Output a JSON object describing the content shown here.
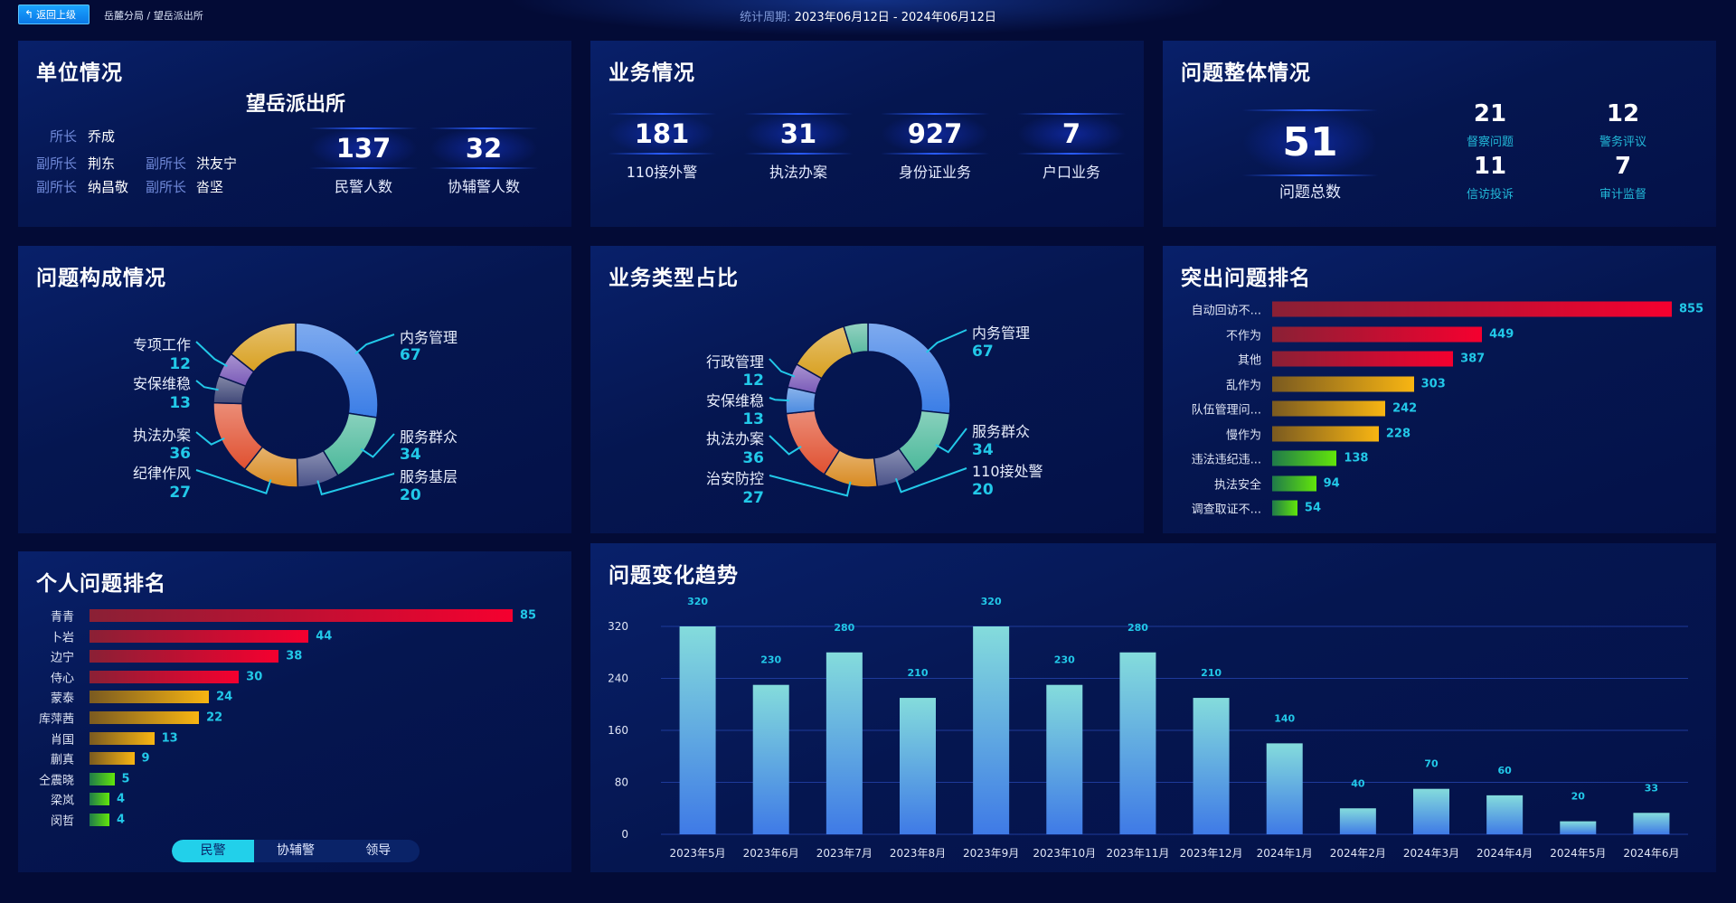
{
  "header": {
    "back_label": "返回上级",
    "back_icon": "return-arrow-icon",
    "breadcrumb": "岳麓分局 / 望岳派出所",
    "period_label": "统计周期:",
    "period_value": "2023年06月12日 - 2024年06月12日"
  },
  "unit": {
    "title": "单位情况",
    "name": "望岳派出所",
    "staff": [
      {
        "role": "所长",
        "name": "乔成"
      },
      {
        "role": "副所长",
        "name": "荆东"
      },
      {
        "role": "副所长",
        "name": "洪友宁"
      },
      {
        "role": "副所长",
        "name": "纳昌敬"
      },
      {
        "role": "副所长",
        "name": "沓坚"
      }
    ],
    "stats": [
      {
        "value": "137",
        "label": "民警人数"
      },
      {
        "value": "32",
        "label": "协辅警人数"
      }
    ]
  },
  "business": {
    "title": "业务情况",
    "stats": [
      {
        "value": "181",
        "label": "110接外警"
      },
      {
        "value": "31",
        "label": "执法办案"
      },
      {
        "value": "927",
        "label": "身份证业务"
      },
      {
        "value": "7",
        "label": "户口业务"
      }
    ]
  },
  "overall": {
    "title": "问题整体情况",
    "total": {
      "value": "51",
      "label": "问题总数"
    },
    "items": [
      {
        "value": "21",
        "label": "督察问题"
      },
      {
        "value": "12",
        "label": "警务评议"
      },
      {
        "value": "11",
        "label": "信访投诉"
      },
      {
        "value": "7",
        "label": "审计监督"
      }
    ]
  },
  "chart_data": [
    {
      "type": "pie",
      "title": "问题构成情况",
      "donut": true,
      "slices": [
        {
          "name": "内务管理",
          "value": 67,
          "color": "#3a7de6"
        },
        {
          "name": "服务群众",
          "value": 34,
          "color": "#4ab89a"
        },
        {
          "name": "服务基层",
          "value": 20,
          "color": "#4a5288"
        },
        {
          "name": "纪律作风",
          "value": 27,
          "color": "#d88a20"
        },
        {
          "name": "执法办案",
          "value": 36,
          "color": "#e05030"
        },
        {
          "name": "安保维稳",
          "value": 13,
          "color": "#404878"
        },
        {
          "name": "专项工作",
          "value": 12,
          "color": "#7a5ab8"
        },
        {
          "name": "",
          "value": 35,
          "color": "#d8a020"
        }
      ]
    },
    {
      "type": "pie",
      "title": "业务类型占比",
      "donut": true,
      "slices": [
        {
          "name": "内务管理",
          "value": 67,
          "color": "#3a7de6"
        },
        {
          "name": "服务群众",
          "value": 34,
          "color": "#4ab89a"
        },
        {
          "name": "110接处警",
          "value": 20,
          "color": "#4a5288"
        },
        {
          "name": "治安防控",
          "value": 27,
          "color": "#d88a20"
        },
        {
          "name": "执法办案",
          "value": 36,
          "color": "#e05030"
        },
        {
          "name": "安保维稳",
          "value": 13,
          "color": "#4a8ae0"
        },
        {
          "name": "行政管理",
          "value": 12,
          "color": "#7a5ab8"
        },
        {
          "name": "",
          "value": 30,
          "color": "#d8a020"
        },
        {
          "name": "",
          "value": 12,
          "color": "#5abaa0"
        }
      ]
    },
    {
      "type": "bar",
      "orientation": "horizontal",
      "title": "突出问题排名",
      "categories": [
        "自动回访不...",
        "不作为",
        "其他",
        "乱作为",
        "队伍管理问...",
        "慢作为",
        "违法违纪违...",
        "执法安全",
        "调查取证不..."
      ],
      "values": [
        855,
        449,
        387,
        303,
        242,
        228,
        138,
        94,
        54
      ]
    },
    {
      "type": "bar",
      "orientation": "horizontal",
      "title": "个人问题排名",
      "categories": [
        "青青",
        "卜岩",
        "边宁",
        "侍心",
        "蒙泰",
        "库萍茜",
        "肖国",
        "蒯真",
        "仝震晓",
        "梁岚",
        "闵哲"
      ],
      "values": [
        85,
        44,
        38,
        30,
        24,
        22,
        13,
        9,
        5,
        4,
        4
      ]
    },
    {
      "type": "bar",
      "title": "问题变化趋势",
      "categories": [
        "2023年5月",
        "2023年6月",
        "2023年7月",
        "2023年8月",
        "2023年9月",
        "2023年10月",
        "2023年11月",
        "2023年12月",
        "2024年1月",
        "2024年2月",
        "2024年3月",
        "2024年4月",
        "2024年5月",
        "2024年6月"
      ],
      "values": [
        320,
        230,
        280,
        210,
        320,
        230,
        280,
        210,
        140,
        40,
        70,
        60,
        20,
        33
      ],
      "yticks": [
        "0",
        "80",
        "160",
        "240",
        "320"
      ],
      "ylim": [
        0,
        320
      ],
      "grid": true
    }
  ],
  "personal_tabs": [
    "民警",
    "协辅警",
    "领导"
  ],
  "colors": {
    "accent": "#22c8e8",
    "bar_red": "#f5002f",
    "bar_orange": "#f8b512",
    "bar_green": "#62e60a",
    "trend_top": "#84dcdc",
    "trend_bottom": "#3f7ae6"
  }
}
